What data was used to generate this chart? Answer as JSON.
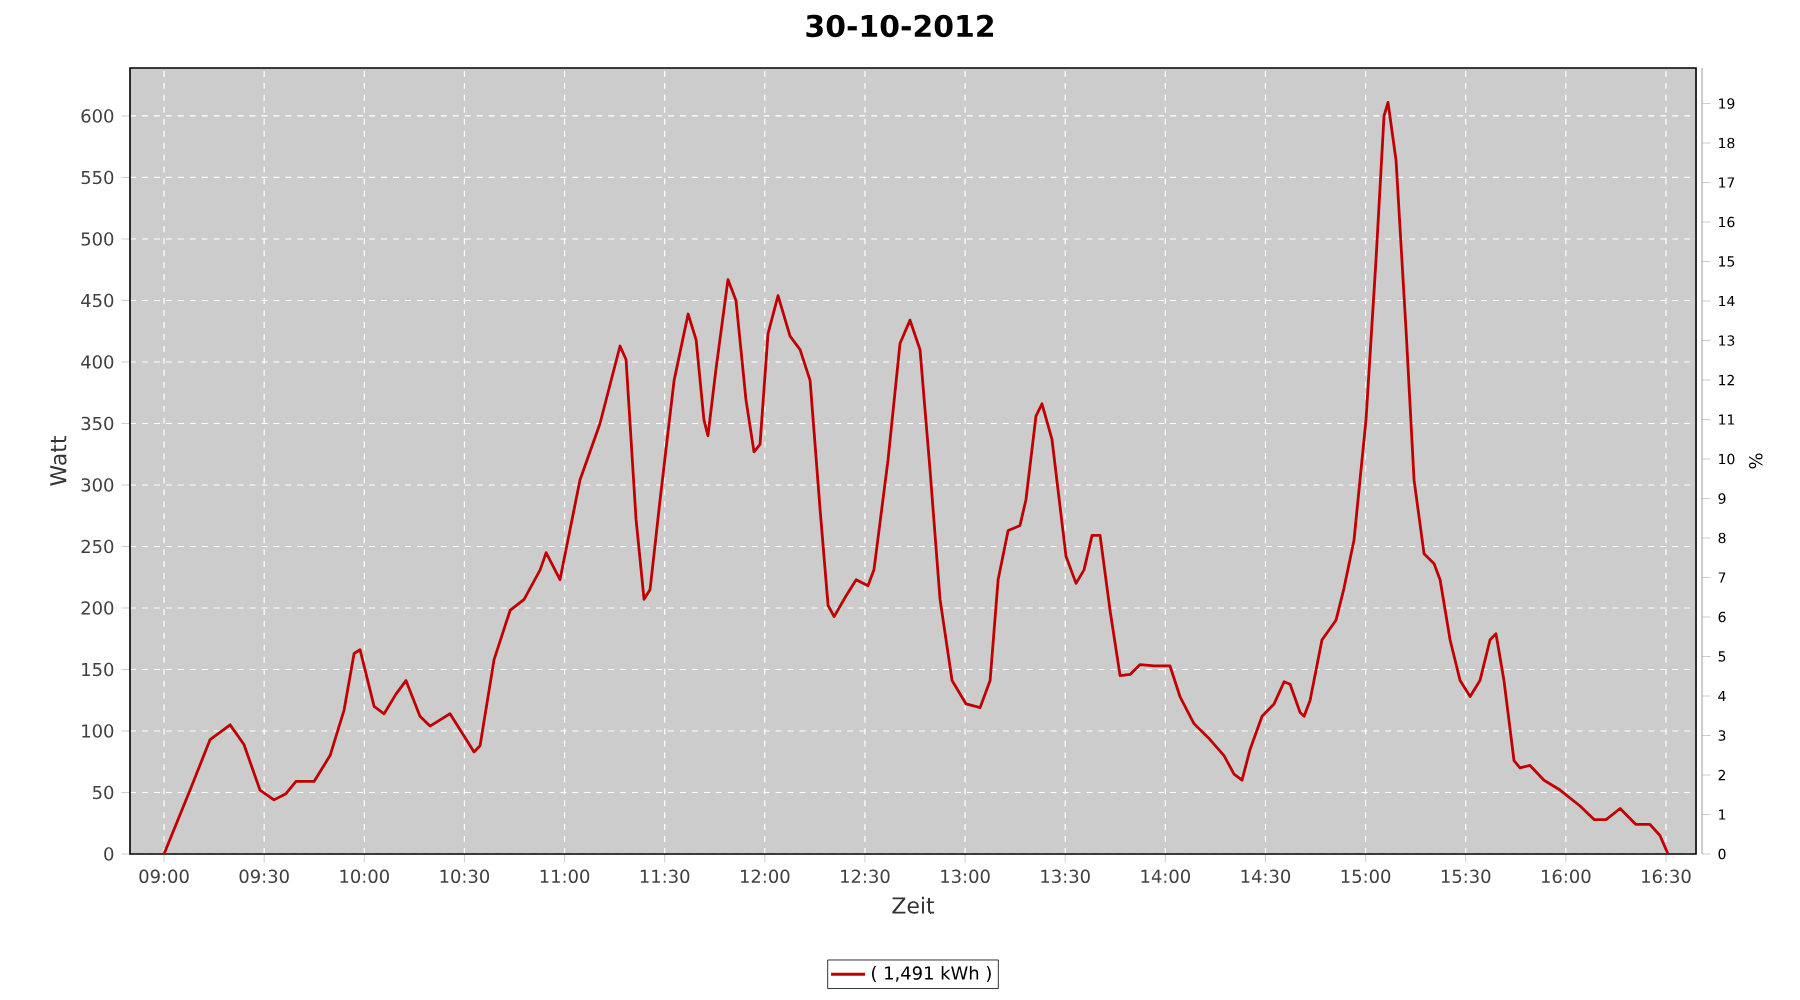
{
  "chart_data": {
    "type": "line",
    "title": "30-10-2012",
    "xlabel": "Zeit",
    "ylabel": "Watt",
    "y2label": "%",
    "xlim": [
      8.83,
      16.65
    ],
    "xticks": [
      {
        "value": 9,
        "label": "09:00"
      },
      {
        "value": 9.5,
        "label": "09:30"
      },
      {
        "value": 10,
        "label": "10:00"
      },
      {
        "value": 10.5,
        "label": "10:30"
      },
      {
        "value": 11,
        "label": "11:00"
      },
      {
        "value": 11.5,
        "label": "11:30"
      },
      {
        "value": 12,
        "label": "12:00"
      },
      {
        "value": 12.5,
        "label": "12:30"
      },
      {
        "value": 13,
        "label": "13:00"
      },
      {
        "value": 13.5,
        "label": "13:30"
      },
      {
        "value": 14,
        "label": "14:00"
      },
      {
        "value": 14.5,
        "label": "14:30"
      },
      {
        "value": 15,
        "label": "15:00"
      },
      {
        "value": 15.5,
        "label": "15:30"
      },
      {
        "value": 16,
        "label": "16:00"
      },
      {
        "value": 16.5,
        "label": "16:30"
      }
    ],
    "ylim": [
      0,
      639
    ],
    "yticks": [
      0,
      50,
      100,
      150,
      200,
      250,
      300,
      350,
      400,
      450,
      500,
      550,
      600
    ],
    "y2lim": [
      0,
      19.9
    ],
    "y2ticks": [
      0,
      1,
      2,
      3,
      4,
      5,
      6,
      7,
      8,
      9,
      10,
      11,
      12,
      13,
      14,
      15,
      16,
      17,
      18,
      19
    ],
    "grid": true,
    "legend": "bottom",
    "series": [
      {
        "name": "( 1,491 kWh )",
        "color": "#c00000",
        "x": [
          9.0,
          9.13,
          9.23,
          9.33,
          9.399,
          9.479,
          9.549,
          9.609,
          9.659,
          9.749,
          9.829,
          9.899,
          9.949,
          9.979,
          10.049,
          10.099,
          10.158,
          10.208,
          10.278,
          10.328,
          10.428,
          10.498,
          10.548,
          10.578,
          10.648,
          10.728,
          10.798,
          10.878,
          10.908,
          10.977,
          11.077,
          11.177,
          11.277,
          11.307,
          11.357,
          11.397,
          11.427,
          11.477,
          11.547,
          11.617,
          11.657,
          11.696,
          11.716,
          11.756,
          11.816,
          11.856,
          11.906,
          11.946,
          11.976,
          12.016,
          12.066,
          12.126,
          12.176,
          12.226,
          12.276,
          12.316,
          12.346,
          12.406,
          12.456,
          12.515,
          12.545,
          12.615,
          12.675,
          12.725,
          12.775,
          12.825,
          12.875,
          12.935,
          13.005,
          13.075,
          13.125,
          13.165,
          13.215,
          13.274,
          13.304,
          13.354,
          13.384,
          13.434,
          13.504,
          13.554,
          13.594,
          13.634,
          13.674,
          13.724,
          13.774,
          13.824,
          13.874,
          13.944,
          14.023,
          14.073,
          14.143,
          14.223,
          14.293,
          14.343,
          14.383,
          14.423,
          14.483,
          14.543,
          14.593,
          14.623,
          14.673,
          14.693,
          14.723,
          14.782,
          14.852,
          14.892,
          14.942,
          15.002,
          15.052,
          15.092,
          15.112,
          15.152,
          15.202,
          15.242,
          15.292,
          15.342,
          15.372,
          15.422,
          15.472,
          15.522,
          15.571,
          15.621,
          15.651,
          15.691,
          15.741,
          15.771,
          15.821,
          15.891,
          15.971,
          16.071,
          16.141,
          16.201,
          16.271,
          16.35,
          16.42,
          16.47,
          16.51
        ],
        "values": [
          0,
          52,
          93,
          105,
          89,
          52,
          44,
          49,
          59,
          59,
          80,
          117,
          163,
          166,
          120,
          114,
          130,
          141,
          112,
          104,
          114,
          96,
          83,
          88,
          158,
          198,
          207,
          231,
          245,
          223,
          304,
          350,
          413,
          402,
          272,
          207,
          215,
          288,
          385,
          439,
          418,
          353,
          340,
          394,
          467,
          450,
          369,
          327,
          333,
          423,
          454,
          421,
          410,
          385,
          280,
          202,
          193,
          210,
          223,
          218,
          231,
          320,
          415,
          434,
          410,
          312,
          207,
          141,
          122,
          119,
          141,
          223,
          263,
          267,
          288,
          356,
          366,
          337,
          242,
          220,
          231,
          259,
          259,
          198,
          145,
          146,
          154,
          153,
          153,
          128,
          106,
          93,
          80,
          65,
          60,
          85,
          112,
          122,
          140,
          138,
          115,
          112,
          125,
          174,
          190,
          216,
          255,
          353,
          483,
          600,
          611,
          564,
          426,
          304,
          244,
          236,
          223,
          174,
          141,
          128,
          141,
          174,
          179,
          141,
          76,
          70,
          72,
          60,
          52,
          39,
          28,
          28,
          37,
          24,
          24,
          15,
          0
        ]
      }
    ]
  }
}
